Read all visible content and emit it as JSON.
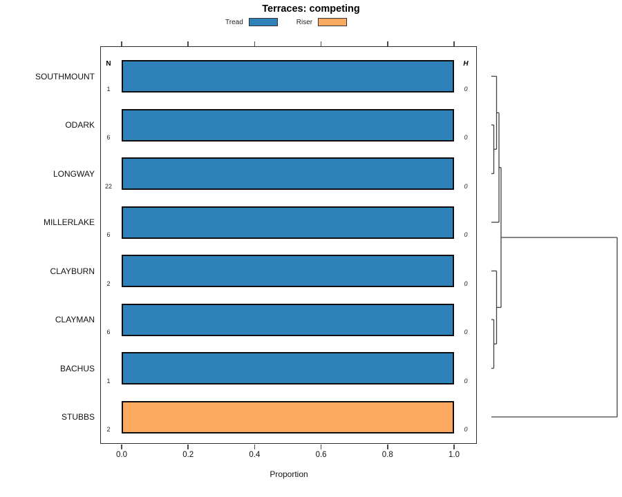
{
  "figure": {
    "title": "Terraces: competing",
    "legend": [
      {
        "label": "Tread",
        "color": "#2E82B9"
      },
      {
        "label": "Riser",
        "color": "#FAA95E"
      }
    ],
    "columns": {
      "n": "N",
      "h": "H"
    }
  },
  "chart_data": {
    "type": "bar",
    "orientation": "horizontal",
    "title": "Terraces: competing",
    "xlabel": "Proportion",
    "ylabel": "",
    "xlim": [
      0,
      1.08
    ],
    "xticks": [
      0,
      0.2,
      0.4,
      0.6,
      0.8,
      1.0
    ],
    "xtick_labels": [
      "0.0",
      "0.2",
      "0.4",
      "0.6",
      "0.8",
      "1.0"
    ],
    "grid": false,
    "legend_position": "top-center",
    "categories": [
      "SOUTHMOUNT",
      "ODARK",
      "LONGWAY",
      "MILLERLAKE",
      "CLAYBURN",
      "CLAYMAN",
      "BACHUS",
      "STUBBS"
    ],
    "series": [
      {
        "name": "Proportion",
        "values": [
          1.0,
          1.0,
          1.0,
          1.0,
          1.0,
          1.0,
          1.0,
          1.0
        ]
      }
    ],
    "bar_class": [
      "Tread",
      "Tread",
      "Tread",
      "Tread",
      "Tread",
      "Tread",
      "Tread",
      "Riser"
    ],
    "class_colors": {
      "Tread": "#2E82B9",
      "Riser": "#FAA95E"
    },
    "N": [
      1,
      6,
      22,
      6,
      2,
      6,
      1,
      2
    ],
    "H": [
      0,
      0,
      0,
      0,
      0,
      0,
      0,
      0
    ],
    "dendrogram": {
      "description": "right-side cluster tree, height 0 at baseline increasing rightward",
      "merges": [
        {
          "id": "m1",
          "a": {
            "leaf": 1
          },
          "b": {
            "leaf": 2
          },
          "h": 3.5
        },
        {
          "id": "m2",
          "a": {
            "leaf": 0
          },
          "b": {
            "node": "m1"
          },
          "h": 7.5
        },
        {
          "id": "m3",
          "a": {
            "node": "m2"
          },
          "b": {
            "leaf": 3
          },
          "h": 11
        },
        {
          "id": "m4",
          "a": {
            "leaf": 5
          },
          "b": {
            "leaf": 6
          },
          "h": 3.5
        },
        {
          "id": "m5",
          "a": {
            "leaf": 4
          },
          "b": {
            "node": "m4"
          },
          "h": 7.5
        },
        {
          "id": "m6",
          "a": {
            "node": "m3"
          },
          "b": {
            "node": "m5"
          },
          "h": 14
        },
        {
          "id": "m7",
          "a": {
            "node": "m6"
          },
          "b": {
            "leaf": 7
          },
          "h": 182
        }
      ]
    }
  }
}
